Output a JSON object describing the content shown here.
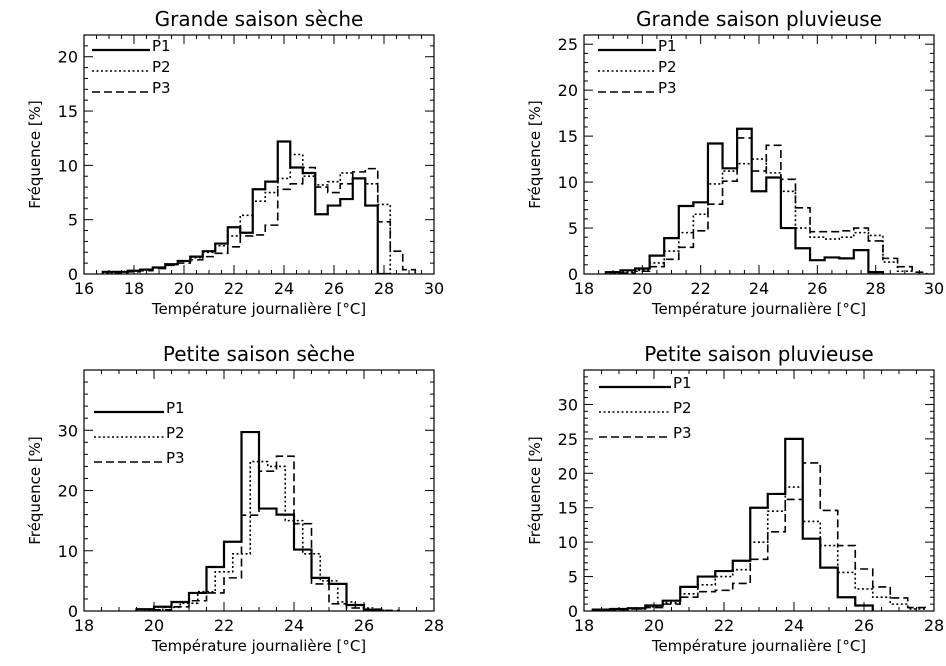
{
  "chart_data": [
    {
      "type": "step-histogram",
      "title": "Grande saison sèche",
      "xlabel": "Température journalière [°C]",
      "ylabel": "Fréquence [%]",
      "xlim": [
        16,
        30
      ],
      "ylim": [
        0,
        22
      ],
      "xticks": [
        16,
        18,
        20,
        22,
        24,
        26,
        28,
        30
      ],
      "yticks": [
        0,
        5,
        10,
        15,
        20
      ],
      "legend_position": "top-left",
      "series": [
        {
          "name": "P1",
          "style": "solid",
          "x": [
            17.0,
            17.5,
            18.0,
            18.5,
            19.0,
            19.5,
            20.0,
            20.5,
            21.0,
            21.5,
            22.0,
            22.5,
            23.0,
            23.5,
            24.0,
            24.5,
            25.0,
            25.5,
            26.0,
            26.5,
            27.0,
            27.5,
            28.0
          ],
          "values": [
            0.2,
            0.2,
            0.3,
            0.4,
            0.6,
            0.9,
            1.2,
            1.6,
            2.1,
            2.8,
            4.3,
            3.8,
            7.8,
            8.5,
            12.2,
            9.8,
            9.3,
            5.5,
            6.3,
            6.9,
            8.8,
            6.3,
            0.0
          ]
        },
        {
          "name": "P2",
          "style": "dotted",
          "x": [
            17.0,
            17.5,
            18.0,
            18.5,
            19.0,
            19.5,
            20.0,
            20.5,
            21.0,
            21.5,
            22.0,
            22.5,
            23.0,
            23.5,
            24.0,
            24.5,
            25.0,
            25.5,
            26.0,
            26.5,
            27.0,
            27.5,
            28.0,
            28.5
          ],
          "values": [
            0.1,
            0.2,
            0.3,
            0.4,
            0.6,
            0.9,
            1.2,
            1.5,
            2.0,
            2.6,
            3.5,
            5.4,
            6.7,
            7.5,
            8.8,
            11.0,
            9.0,
            8.2,
            8.5,
            9.3,
            8.8,
            8.3,
            6.4,
            0.0
          ]
        },
        {
          "name": "P3",
          "style": "dashed",
          "x": [
            17.5,
            18.0,
            18.5,
            19.0,
            19.5,
            20.0,
            20.5,
            21.0,
            21.5,
            22.0,
            22.5,
            23.0,
            23.5,
            24.0,
            24.5,
            25.0,
            25.5,
            26.0,
            26.5,
            27.0,
            27.5,
            28.0,
            28.5,
            29.0
          ],
          "values": [
            0.1,
            0.2,
            0.3,
            0.5,
            0.8,
            1.0,
            1.3,
            1.6,
            1.9,
            2.5,
            3.5,
            3.6,
            4.5,
            7.8,
            8.3,
            9.8,
            8.0,
            7.5,
            8.3,
            9.4,
            9.7,
            4.8,
            2.1,
            0.4
          ]
        }
      ]
    },
    {
      "type": "step-histogram",
      "title": "Grande saison pluvieuse",
      "xlabel": "Température journalière [°C]",
      "ylabel": "Fréquence [%]",
      "xlim": [
        18,
        30
      ],
      "ylim": [
        0,
        26
      ],
      "xticks": [
        18,
        20,
        22,
        24,
        26,
        28,
        30
      ],
      "yticks": [
        0,
        5,
        10,
        15,
        20,
        25
      ],
      "legend_position": "top-left",
      "series": [
        {
          "name": "P1",
          "style": "solid",
          "x": [
            19.0,
            19.5,
            20.0,
            20.5,
            21.0,
            21.5,
            22.0,
            22.5,
            23.0,
            23.5,
            24.0,
            24.5,
            25.0,
            25.5,
            26.0,
            26.5,
            27.0,
            27.5,
            28.0
          ],
          "values": [
            0.2,
            0.4,
            0.6,
            2.0,
            3.9,
            7.4,
            7.8,
            14.2,
            11.5,
            15.8,
            9.0,
            10.5,
            5.0,
            2.8,
            1.5,
            1.8,
            1.7,
            2.6,
            0.2
          ]
        },
        {
          "name": "P2",
          "style": "dotted",
          "x": [
            19.0,
            19.5,
            20.0,
            20.5,
            21.0,
            21.5,
            22.0,
            22.5,
            23.0,
            23.5,
            24.0,
            24.5,
            25.0,
            25.5,
            26.0,
            26.5,
            27.0,
            27.5,
            28.0,
            28.5,
            29.0
          ],
          "values": [
            0.1,
            0.2,
            0.4,
            1.2,
            2.5,
            4.5,
            6.5,
            9.8,
            11.2,
            12.0,
            12.5,
            11.0,
            9.0,
            5.0,
            4.0,
            3.8,
            4.0,
            4.5,
            4.2,
            1.3,
            0.3
          ]
        },
        {
          "name": "P3",
          "style": "dashed",
          "x": [
            19.5,
            20.0,
            20.5,
            21.0,
            21.5,
            22.0,
            22.5,
            23.0,
            23.5,
            24.0,
            24.5,
            25.0,
            25.5,
            26.0,
            26.5,
            27.0,
            27.5,
            28.0,
            28.5,
            29.0,
            29.5
          ],
          "values": [
            0.1,
            0.3,
            0.8,
            1.6,
            2.9,
            4.7,
            7.6,
            10.1,
            14.8,
            11.2,
            14.0,
            10.3,
            7.2,
            4.6,
            4.6,
            4.7,
            5.0,
            3.6,
            1.7,
            0.8,
            0.2
          ]
        }
      ]
    },
    {
      "type": "step-histogram",
      "title": "Petite saison sèche",
      "xlabel": "Température journalière [°C]",
      "ylabel": "Fréquence [%]",
      "xlim": [
        18,
        28
      ],
      "ylim": [
        0,
        40
      ],
      "xticks": [
        18,
        20,
        22,
        24,
        26,
        28
      ],
      "yticks": [
        0,
        10,
        20,
        30
      ],
      "legend_position": "top-left",
      "series": [
        {
          "name": "P1",
          "style": "solid",
          "x": [
            19.75,
            20.25,
            20.75,
            21.25,
            21.75,
            22.25,
            22.75,
            23.25,
            23.75,
            24.25,
            24.75,
            25.25,
            25.75,
            26.25
          ],
          "values": [
            0.3,
            0.7,
            1.5,
            3.0,
            7.3,
            11.5,
            29.7,
            17.0,
            16.0,
            10.2,
            5.5,
            4.5,
            1.0,
            0.2
          ]
        },
        {
          "name": "P2",
          "style": "dotted",
          "x": [
            20.0,
            20.5,
            21.0,
            21.5,
            22.0,
            22.5,
            23.0,
            23.5,
            24.0,
            24.5,
            25.0,
            25.5,
            26.0,
            26.5
          ],
          "values": [
            0.2,
            0.6,
            1.3,
            3.2,
            6.5,
            9.5,
            24.8,
            24.0,
            15.0,
            9.5,
            5.0,
            1.5,
            0.5,
            0.1
          ]
        },
        {
          "name": "P3",
          "style": "dashed",
          "x": [
            20.25,
            20.75,
            21.25,
            21.75,
            22.25,
            22.75,
            23.25,
            23.75,
            24.25,
            24.75,
            25.25,
            25.75,
            26.25,
            26.75
          ],
          "values": [
            0.2,
            0.7,
            1.7,
            3.0,
            5.5,
            15.9,
            23.2,
            25.7,
            14.5,
            4.5,
            1.2,
            0.5,
            0.3,
            0.1
          ]
        }
      ]
    },
    {
      "type": "step-histogram",
      "title": "Petite saison pluvieuse",
      "xlabel": "Température journalière [°C]",
      "ylabel": "Fréquence [%]",
      "xlim": [
        18,
        28
      ],
      "ylim": [
        0,
        35
      ],
      "xticks": [
        18,
        20,
        22,
        24,
        26,
        28
      ],
      "yticks": [
        0,
        5,
        10,
        15,
        20,
        25,
        30
      ],
      "legend_position": "top-left",
      "series": [
        {
          "name": "P1",
          "style": "solid",
          "x": [
            18.5,
            19.0,
            19.5,
            20.0,
            20.5,
            21.0,
            21.5,
            22.0,
            22.5,
            23.0,
            23.5,
            24.0,
            24.5,
            25.0,
            25.5,
            26.0
          ],
          "values": [
            0.2,
            0.3,
            0.4,
            0.8,
            1.5,
            3.5,
            5.0,
            5.8,
            7.3,
            15.0,
            17.0,
            25.0,
            10.5,
            6.3,
            2.0,
            0.8
          ]
        },
        {
          "name": "P2",
          "style": "dotted",
          "x": [
            18.5,
            19.0,
            19.5,
            20.0,
            20.5,
            21.0,
            21.5,
            22.0,
            22.5,
            23.0,
            23.5,
            24.0,
            24.5,
            25.0,
            25.5,
            26.0,
            26.5,
            27.0,
            27.5
          ],
          "values": [
            0.1,
            0.2,
            0.3,
            0.6,
            1.2,
            2.5,
            3.8,
            5.0,
            6.0,
            10.0,
            14.5,
            18.0,
            13.0,
            9.5,
            5.6,
            3.2,
            2.0,
            1.0,
            0.3
          ]
        },
        {
          "name": "P3",
          "style": "dashed",
          "x": [
            19.0,
            19.5,
            20.0,
            20.5,
            21.0,
            21.5,
            22.0,
            22.5,
            23.0,
            23.5,
            24.0,
            24.5,
            25.0,
            25.5,
            26.0,
            26.5,
            27.0,
            27.5
          ],
          "values": [
            0.2,
            0.3,
            0.5,
            1.0,
            2.0,
            2.8,
            3.0,
            4.0,
            7.5,
            11.5,
            16.2,
            21.5,
            14.6,
            9.5,
            6.1,
            3.5,
            1.9,
            0.5
          ]
        }
      ]
    }
  ]
}
